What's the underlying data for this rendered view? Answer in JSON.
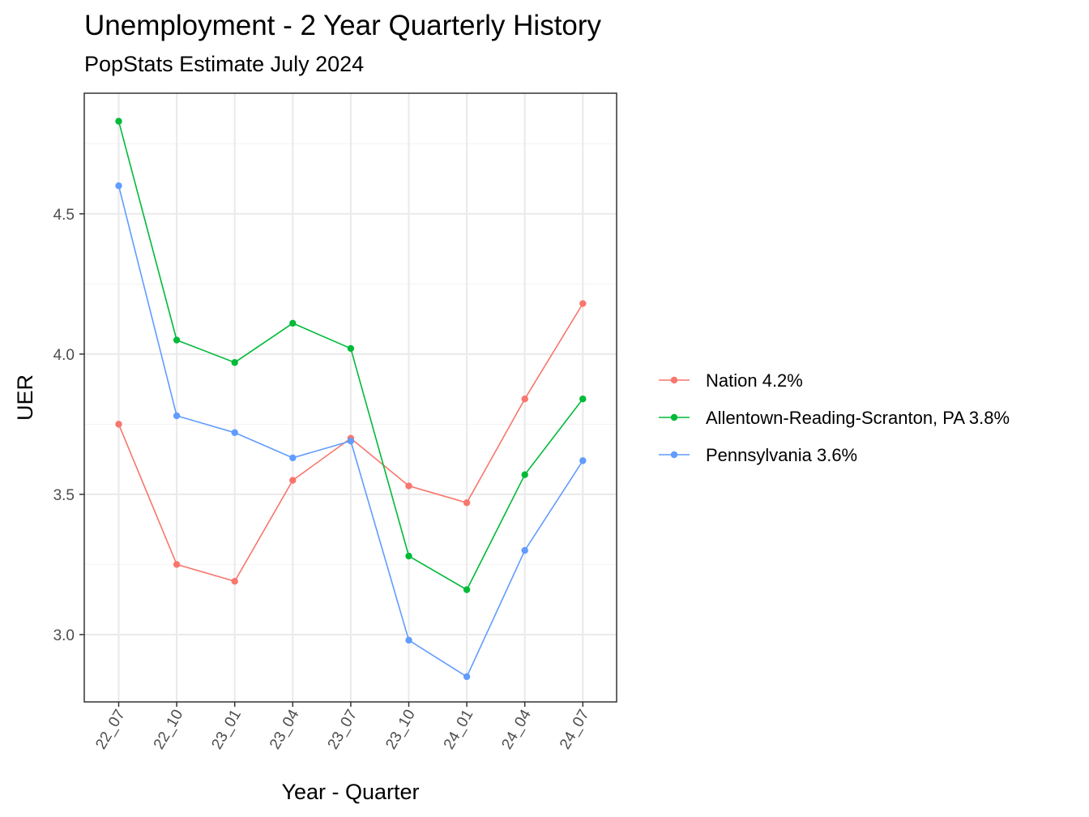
{
  "chart": {
    "title": "Unemployment - 2 Year Quarterly History",
    "subtitle": "PopStats Estimate July 2024"
  },
  "chart_data": {
    "type": "line",
    "title": "Unemployment - 2 Year Quarterly History",
    "subtitle": "PopStats Estimate July 2024",
    "xlabel": "Year - Quarter",
    "ylabel": "UER",
    "categories": [
      "22_07",
      "22_10",
      "23_01",
      "23_04",
      "23_07",
      "23_10",
      "24_01",
      "24_04",
      "24_07"
    ],
    "yticks": [
      3.0,
      3.5,
      4.0,
      4.5
    ],
    "ytick_labels": [
      "3.0",
      "3.5",
      "4.0",
      "4.5"
    ],
    "ylim": [
      2.76,
      4.93
    ],
    "grid": true,
    "legend_position": "right",
    "series": [
      {
        "name": "Nation 4.2%",
        "color": "#F8766D",
        "values": [
          3.75,
          3.25,
          3.19,
          3.55,
          3.7,
          3.53,
          3.47,
          3.84,
          4.18
        ]
      },
      {
        "name": "Allentown-Reading-Scranton, PA 3.8%",
        "color": "#00BA38",
        "values": [
          4.83,
          4.05,
          3.97,
          4.11,
          4.02,
          3.28,
          3.16,
          3.57,
          3.84
        ]
      },
      {
        "name": "Pennsylvania 3.6%",
        "color": "#619CFF",
        "values": [
          4.6,
          3.78,
          3.72,
          3.63,
          3.69,
          2.98,
          2.85,
          3.3,
          3.62
        ]
      }
    ]
  }
}
